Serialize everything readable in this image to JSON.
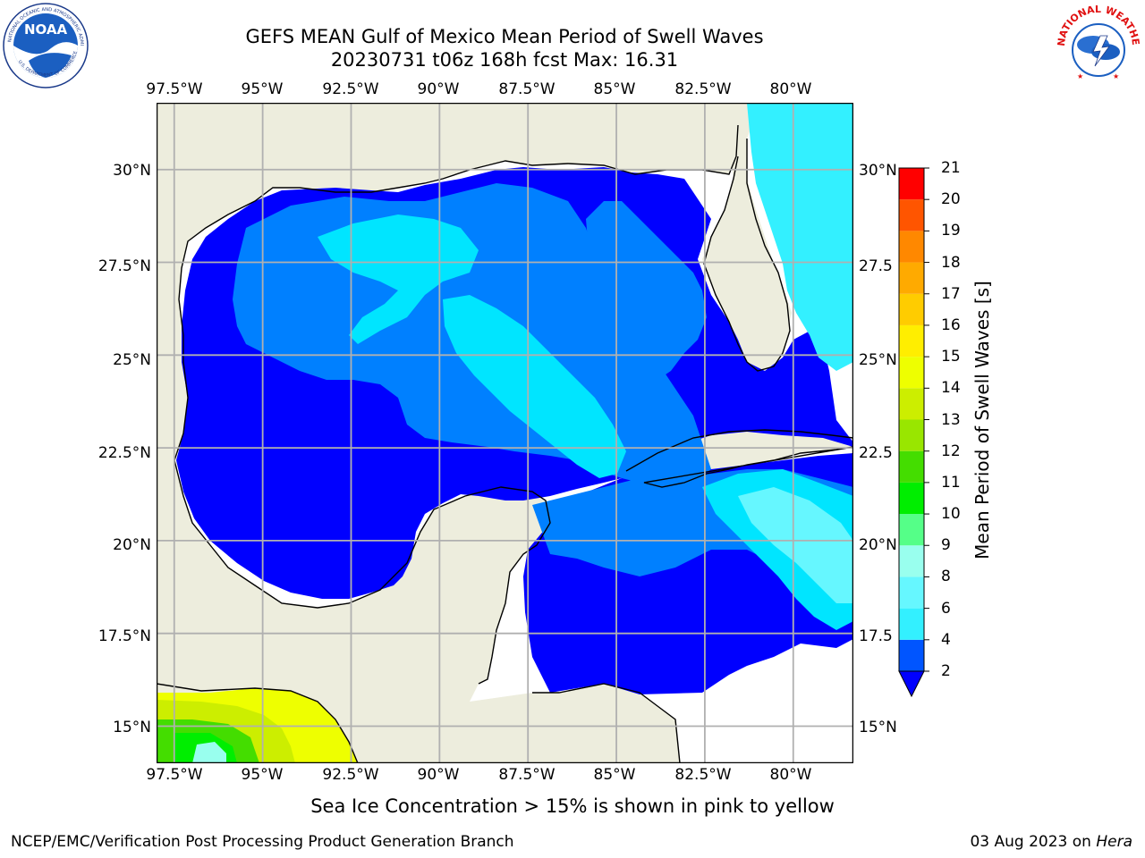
{
  "header": {
    "title_line1": "GEFS MEAN Gulf of Mexico Mean Period of Swell Waves",
    "title_line2": "20230731 t06z 168h fcst   Max: 16.31"
  },
  "logos": {
    "left": {
      "name": "NOAA",
      "ring_text": "NATIONAL OCEANIC AND ATMOSPHERIC ADMINISTRATION",
      "bottom_text": "U.S. DEPARTMENT OF COMMERCE"
    },
    "right": {
      "ring_text": "NATIONAL WEATHER SERVICE"
    }
  },
  "map": {
    "top_lon_labels": [
      "97.5°W",
      "95°W",
      "92.5°W",
      "90°W",
      "87.5°W",
      "85°W",
      "82.5°W",
      "80°W"
    ],
    "bottom_lon_labels": [
      "97.5°W",
      "95°W",
      "92.5°W",
      "90°W",
      "87.5°W",
      "85°W",
      "82.5°W",
      "80°W"
    ],
    "left_lat_labels": [
      "30°N",
      "27.5°N",
      "25°N",
      "22.5°N",
      "20°N",
      "17.5°N",
      "15°N"
    ],
    "right_lat_labels": [
      "30°N",
      "27.5",
      "25°N",
      "22.5",
      "20°N",
      "17.5",
      "15°N"
    ],
    "lon_values": [
      -97.5,
      -95,
      -92.5,
      -90,
      -87.5,
      -85,
      -82.5,
      -80
    ],
    "lat_values": [
      30,
      27.5,
      25,
      22.5,
      20,
      17.5,
      15
    ],
    "lon_range": [
      -98,
      -78.3
    ],
    "lat_range": [
      14,
      31.8
    ],
    "land_color": "#ededdd",
    "ocean_no_data_color": "#ffffff"
  },
  "colorbar": {
    "title": "Mean Period of Swell Waves [s]",
    "levels": [
      "2",
      "4",
      "6",
      "8",
      "9",
      "10",
      "11",
      "12",
      "13",
      "14",
      "15",
      "16",
      "17",
      "18",
      "19",
      "20",
      "21"
    ],
    "colors": [
      "#0055ff",
      "#00e5ff",
      "#33f0ff",
      "#66f7ff",
      "#99ffee",
      "#55ff88",
      "#00ee00",
      "#44dd00",
      "#99e600",
      "#ccee00",
      "#eeff00",
      "#ffee00",
      "#ffcc00",
      "#ffaa00",
      "#ff8800",
      "#ff5500",
      "#ff0000"
    ],
    "under_color": "#0000ff"
  },
  "note": "Sea Ice Concentration > 15% is shown in pink to yellow",
  "footer": {
    "left": "NCEP/EMC/Verification Post Processing Product Generation Branch",
    "right_date": "03 Aug 2023 on",
    "right_host": "Hera"
  },
  "chart_data": {
    "type": "heatmap",
    "title": "GEFS MEAN Gulf of Mexico Mean Period of Swell Waves",
    "subtitle": "20230731 t06z 168h fcst   Max: 16.31",
    "xlabel": "",
    "ylabel": "",
    "colorbar_label": "Mean Period of Swell Waves [s]",
    "colorbar_ticks": [
      2,
      4,
      6,
      8,
      9,
      10,
      11,
      12,
      13,
      14,
      15,
      16,
      17,
      18,
      19,
      20,
      21
    ],
    "max": 16.31,
    "grid": true
  }
}
